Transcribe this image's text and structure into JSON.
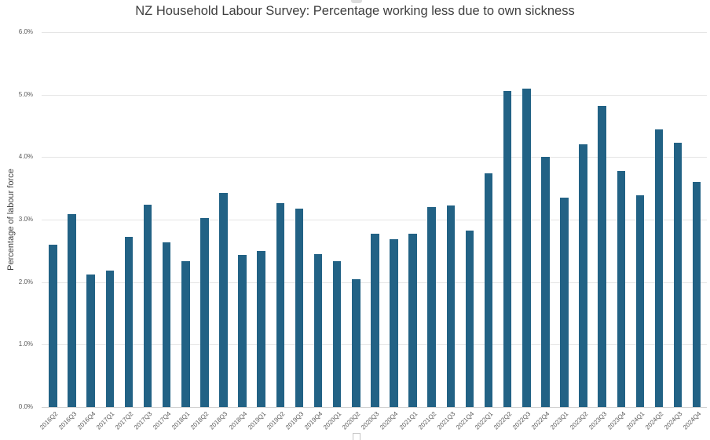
{
  "page": {
    "background": "#ffffff"
  },
  "colors": {
    "bar": "#226285",
    "gridline": "#e5e5e5",
    "axis_line": "#d2d2d2",
    "title_text": "#3f3f3f",
    "tick_text": "#595959"
  },
  "chart_data": {
    "type": "bar",
    "title": "NZ Household Labour Survey: Percentage working less due to own sickness",
    "xlabel": "",
    "ylabel": "Percentage of labour force",
    "ylim": [
      0,
      6
    ],
    "yticks": [
      "0.0%",
      "1.0%",
      "2.0%",
      "3.0%",
      "4.0%",
      "5.0%",
      "6.0%"
    ],
    "grid": "horizontal",
    "legend_position": "bottom (clipped off screen edge)",
    "categories": [
      "2016Q2",
      "2016Q3",
      "2016Q4",
      "2017Q1",
      "2017Q2",
      "2017Q3",
      "2017Q4",
      "2018Q1",
      "2018Q2",
      "2018Q3",
      "2018Q4",
      "2019Q1",
      "2019Q2",
      "2019Q3",
      "2019Q4",
      "2020Q1",
      "2020Q2",
      "2020Q3",
      "2020Q4",
      "2021Q1",
      "2021Q2",
      "2021Q3",
      "2021Q4",
      "2022Q1",
      "2022Q2",
      "2022Q3",
      "2022Q4",
      "2023Q1",
      "2023Q2",
      "2023Q3",
      "2023Q4",
      "2024Q1",
      "2024Q2",
      "2024Q3",
      "2024Q4"
    ],
    "values": [
      2.6,
      3.09,
      2.12,
      2.18,
      2.72,
      3.24,
      2.63,
      2.34,
      3.02,
      3.43,
      2.43,
      2.5,
      3.26,
      3.17,
      2.45,
      2.34,
      2.04,
      2.77,
      2.68,
      2.77,
      3.2,
      3.23,
      2.83,
      3.74,
      5.06,
      5.1,
      4.0,
      3.35,
      4.2,
      4.82,
      3.78,
      3.39,
      4.44,
      4.23,
      3.6
    ],
    "value_unit": "%"
  }
}
